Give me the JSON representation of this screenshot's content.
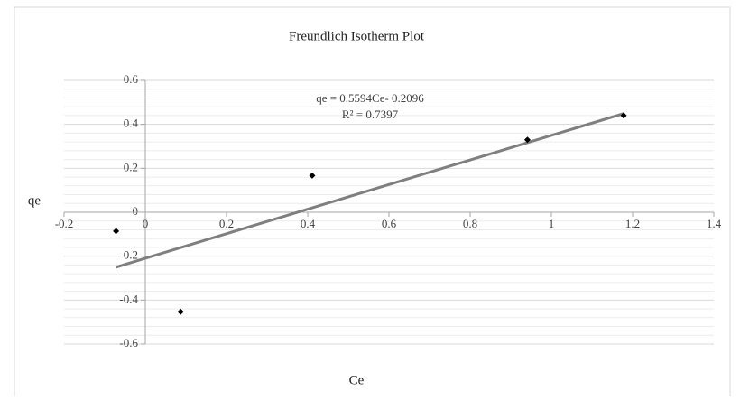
{
  "chart_data": {
    "type": "scatter",
    "title": "Freundlich Isotherm Plot",
    "x_label": "Ce",
    "y_label": "qe",
    "series": [
      {
        "name": "qe",
        "color": "#000000",
        "x": [
          -0.072,
          0.087,
          0.411,
          0.941,
          1.178
        ],
        "values": [
          -0.086,
          -0.453,
          0.167,
          0.33,
          0.44
        ]
      }
    ],
    "trendline": {
      "slope": 0.5594,
      "intercept": -0.2096,
      "color": "#7f7f7f",
      "equation": "qe = 0.5594Ce- 0.2096",
      "r_squared": "R² = 0.7397"
    },
    "xlim": [
      -0.2,
      1.4
    ],
    "xticks": [
      -0.2,
      0,
      0.2,
      0.4,
      0.6,
      0.8,
      1,
      1.2,
      1.4
    ],
    "ylim": [
      -0.6,
      0.6
    ],
    "yticks": [
      -0.6,
      -0.4,
      -0.2,
      0,
      0.2,
      0.4,
      0.6
    ],
    "grid": true,
    "minor_grid": true
  }
}
